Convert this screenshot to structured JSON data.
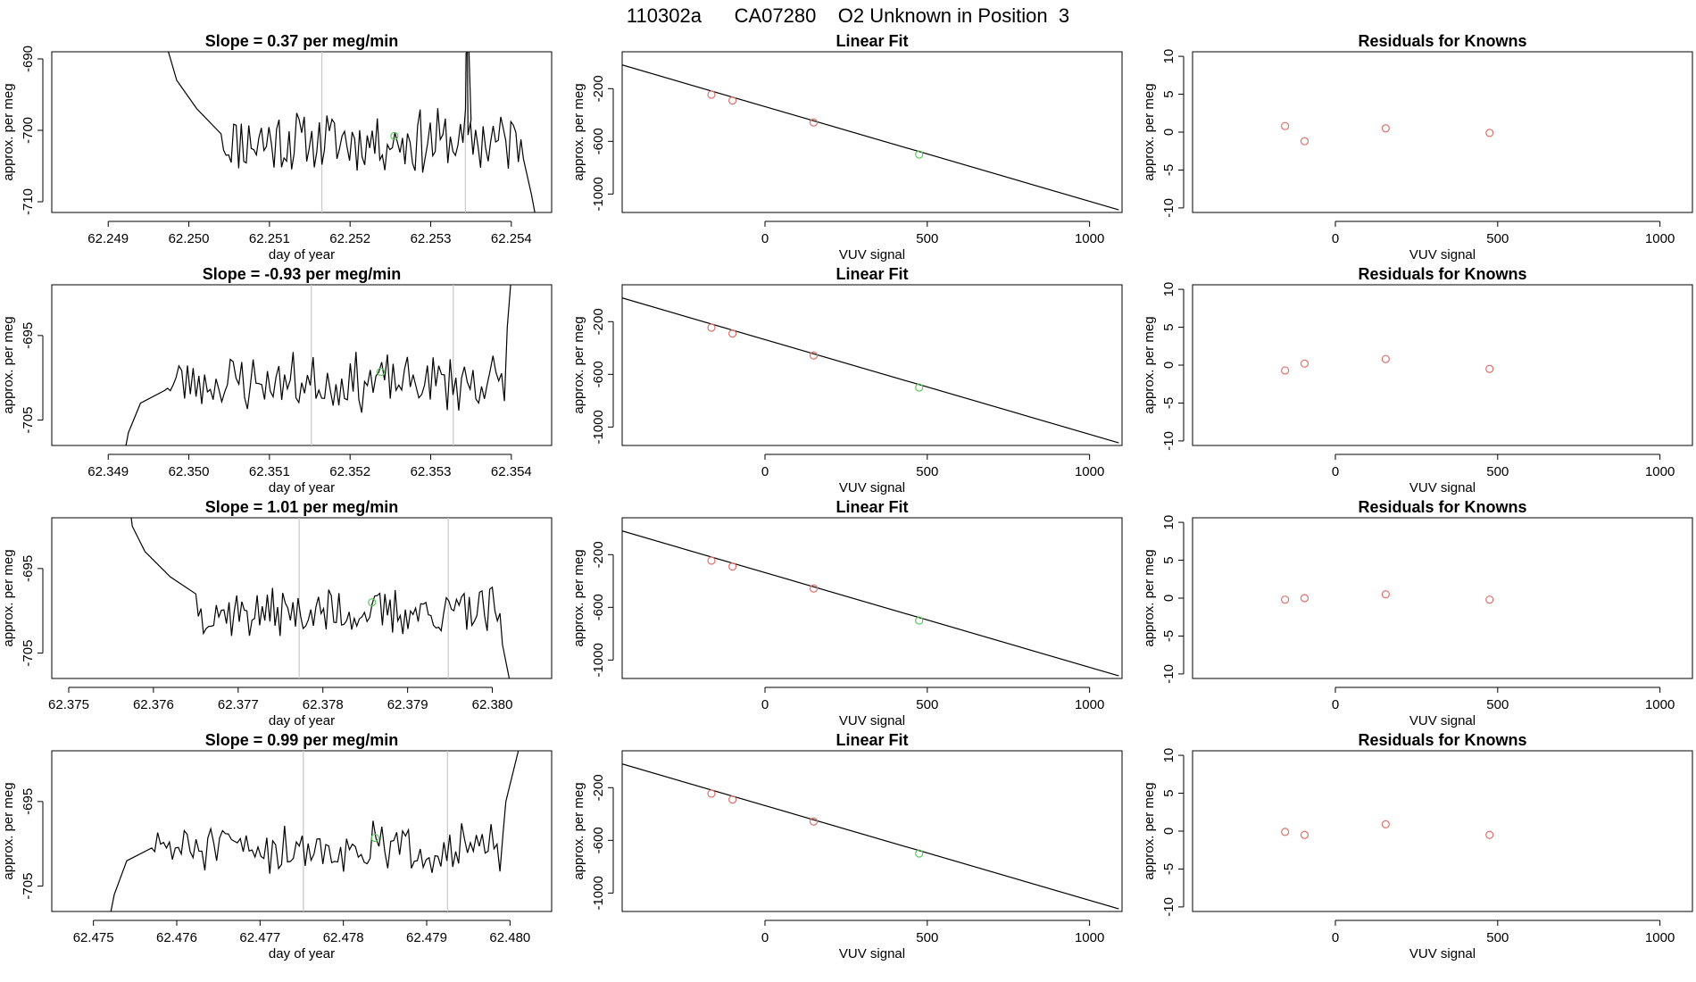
{
  "figure_title": "110302a      CA07280    O2 Unknown in Position  3",
  "colors": {
    "known_points": "#e0706a",
    "unknown_points": "#5cc95c",
    "window_lines": "#c8c8c8",
    "series": "#000000"
  },
  "chart_data": [
    {
      "type": "line",
      "row": 1,
      "kind": "timeseries",
      "title": "Slope =  0.37  per meg/min",
      "xlabel": "day of year",
      "ylabel": "approx. per meg",
      "xlim": [
        62.2483,
        62.2545
      ],
      "ylim": [
        -711.5,
        -689
      ],
      "xticks": [
        62.249,
        62.25,
        62.251,
        62.252,
        62.253,
        62.254
      ],
      "xtick_labels": [
        "62.249",
        "62.250",
        "62.251",
        "62.252",
        "62.253",
        "62.254"
      ],
      "yticks": [
        -690,
        -700,
        -710
      ],
      "ytick_labels": [
        "-690",
        "-700",
        "-710"
      ],
      "window_start": 62.25165,
      "window_end": 62.25343,
      "unknown_point": {
        "x": 62.25255,
        "y": -700.8
      },
      "series_start": 62.2497,
      "series_end": 62.2543,
      "level": -701.5,
      "spike_amp": 4,
      "seed": 11,
      "edge_profile": [
        [
          62.2497,
          -680
        ],
        [
          62.24972,
          -688
        ],
        [
          62.24985,
          -693
        ],
        [
          62.2501,
          -697
        ],
        [
          62.2504,
          -700.5
        ]
      ],
      "edge_end": [
        [
          62.25415,
          -704
        ],
        [
          62.25425,
          -709
        ],
        [
          62.2543,
          -712
        ]
      ],
      "spike": {
        "x": 62.25345,
        "y": -680
      }
    },
    {
      "type": "line",
      "row": 1,
      "kind": "fit",
      "title": "Linear Fit",
      "xlabel": "VUV signal",
      "ylabel": "approx. per meg",
      "xlim": [
        -440,
        1100
      ],
      "ylim": [
        -1140,
        80
      ],
      "xticks": [
        0,
        500,
        1000
      ],
      "xtick_labels": [
        "0",
        "500",
        "1000"
      ],
      "yticks": [
        -200,
        -600,
        -1000
      ],
      "ytick_labels": [
        "-200",
        "-600",
        "-1000"
      ],
      "line": {
        "x": [
          -440,
          1090
        ],
        "y": [
          -20,
          -1120
        ]
      },
      "known_points": {
        "x": [
          -165,
          -100,
          150
        ],
        "y": [
          -245,
          -290,
          -457
        ]
      },
      "unknown_points": {
        "x": [
          475
        ],
        "y": [
          -700
        ]
      }
    },
    {
      "type": "scatter",
      "row": 1,
      "kind": "residuals",
      "title": "Residuals for Knowns",
      "xlabel": "VUV signal",
      "ylabel": "approx. per meg",
      "xlim": [
        -440,
        1100
      ],
      "ylim": [
        -10.6,
        10.6
      ],
      "xticks": [
        0,
        500,
        1000
      ],
      "xtick_labels": [
        "0",
        "500",
        "1000"
      ],
      "yticks": [
        10,
        5,
        0,
        -5,
        -10
      ],
      "ytick_labels": [
        "10",
        "5",
        "0",
        "-5",
        "-10"
      ],
      "known_points": {
        "x": [
          -155,
          -95,
          155,
          475
        ],
        "y": [
          0.8,
          -1.2,
          0.5,
          -0.1
        ]
      }
    },
    {
      "type": "line",
      "row": 2,
      "kind": "timeseries",
      "title": "Slope =  -0.93  per meg/min",
      "xlabel": "day of year",
      "ylabel": "approx. per meg",
      "xlim": [
        62.3483,
        62.3545
      ],
      "ylim": [
        -708,
        -689
      ],
      "xticks": [
        62.349,
        62.35,
        62.351,
        62.352,
        62.353,
        62.354
      ],
      "xtick_labels": [
        "62.349",
        "62.350",
        "62.351",
        "62.352",
        "62.353",
        "62.354"
      ],
      "yticks": [
        -695,
        -705
      ],
      "ytick_labels": [
        "-695",
        "-705"
      ],
      "window_start": 62.35152,
      "window_end": 62.35328,
      "unknown_point": {
        "x": 62.35238,
        "y": -699.3
      },
      "series_start": 62.3492,
      "series_end": 62.354,
      "level": -700.5,
      "spike_amp": 3,
      "seed": 23,
      "edge_profile": [
        [
          62.3492,
          -709
        ],
        [
          62.34925,
          -706.5
        ],
        [
          62.3494,
          -703
        ],
        [
          62.3497,
          -701.5
        ]
      ],
      "edge_end": [
        [
          62.35395,
          -694
        ],
        [
          62.354,
          -688
        ]
      ],
      "spike": null
    },
    {
      "type": "line",
      "row": 2,
      "kind": "fit",
      "title": "Linear Fit",
      "xlabel": "VUV signal",
      "ylabel": "approx. per meg",
      "xlim": [
        -440,
        1100
      ],
      "ylim": [
        -1140,
        80
      ],
      "xticks": [
        0,
        500,
        1000
      ],
      "xtick_labels": [
        "0",
        "500",
        "1000"
      ],
      "yticks": [
        -200,
        -600,
        -1000
      ],
      "ytick_labels": [
        "-200",
        "-600",
        "-1000"
      ],
      "line": {
        "x": [
          -440,
          1090
        ],
        "y": [
          -20,
          -1120
        ]
      },
      "known_points": {
        "x": [
          -165,
          -100,
          150
        ],
        "y": [
          -245,
          -290,
          -457
        ]
      },
      "unknown_points": {
        "x": [
          475
        ],
        "y": [
          -700
        ]
      }
    },
    {
      "type": "scatter",
      "row": 2,
      "kind": "residuals",
      "title": "Residuals for Knowns",
      "xlabel": "VUV signal",
      "ylabel": "approx. per meg",
      "xlim": [
        -440,
        1100
      ],
      "ylim": [
        -10.6,
        10.6
      ],
      "xticks": [
        0,
        500,
        1000
      ],
      "xtick_labels": [
        "0",
        "500",
        "1000"
      ],
      "yticks": [
        10,
        5,
        0,
        -5,
        -10
      ],
      "ytick_labels": [
        "10",
        "5",
        "0",
        "-5",
        "-10"
      ],
      "known_points": {
        "x": [
          -155,
          -95,
          155,
          475
        ],
        "y": [
          -0.7,
          0.2,
          0.8,
          -0.5
        ]
      }
    },
    {
      "type": "line",
      "row": 3,
      "kind": "timeseries",
      "title": "Slope =  1.01  per meg/min",
      "xlabel": "day of year",
      "ylabel": "approx. per meg",
      "xlim": [
        62.3748,
        62.3807
      ],
      "ylim": [
        -708,
        -689
      ],
      "xticks": [
        62.375,
        62.376,
        62.377,
        62.378,
        62.379,
        62.38
      ],
      "xtick_labels": [
        "62.375",
        "62.376",
        "62.377",
        "62.378",
        "62.379",
        "62.380"
      ],
      "yticks": [
        -695,
        -705
      ],
      "ytick_labels": [
        "-695",
        "-705"
      ],
      "window_start": 62.37772,
      "window_end": 62.37948,
      "unknown_point": {
        "x": 62.37858,
        "y": -699
      },
      "series_start": 62.3757,
      "series_end": 62.3802,
      "level": -700.2,
      "spike_amp": 2.5,
      "seed": 37,
      "edge_profile": [
        [
          62.3757,
          -686
        ],
        [
          62.37575,
          -690
        ],
        [
          62.3759,
          -693
        ],
        [
          62.3762,
          -696
        ],
        [
          62.3765,
          -698
        ]
      ],
      "edge_end": [
        [
          62.38012,
          -704
        ],
        [
          62.3802,
          -708
        ]
      ],
      "spike": null
    },
    {
      "type": "line",
      "row": 3,
      "kind": "fit",
      "title": "Linear Fit",
      "xlabel": "VUV signal",
      "ylabel": "approx. per meg",
      "xlim": [
        -440,
        1100
      ],
      "ylim": [
        -1140,
        80
      ],
      "xticks": [
        0,
        500,
        1000
      ],
      "xtick_labels": [
        "0",
        "500",
        "1000"
      ],
      "yticks": [
        -200,
        -600,
        -1000
      ],
      "ytick_labels": [
        "-200",
        "-600",
        "-1000"
      ],
      "line": {
        "x": [
          -440,
          1090
        ],
        "y": [
          -20,
          -1120
        ]
      },
      "known_points": {
        "x": [
          -165,
          -100,
          150
        ],
        "y": [
          -245,
          -290,
          -457
        ]
      },
      "unknown_points": {
        "x": [
          475
        ],
        "y": [
          -700
        ]
      }
    },
    {
      "type": "scatter",
      "row": 3,
      "kind": "residuals",
      "title": "Residuals for Knowns",
      "xlabel": "VUV signal",
      "ylabel": "approx. per meg",
      "xlim": [
        -440,
        1100
      ],
      "ylim": [
        -10.6,
        10.6
      ],
      "xticks": [
        0,
        500,
        1000
      ],
      "xtick_labels": [
        "0",
        "500",
        "1000"
      ],
      "yticks": [
        10,
        5,
        0,
        -5,
        -10
      ],
      "ytick_labels": [
        "10",
        "5",
        "0",
        "-5",
        "-10"
      ],
      "known_points": {
        "x": [
          -155,
          -95,
          155,
          475
        ],
        "y": [
          -0.2,
          0.0,
          0.5,
          -0.2
        ]
      }
    },
    {
      "type": "line",
      "row": 4,
      "kind": "timeseries",
      "title": "Slope =  0.99  per meg/min",
      "xlabel": "day of year",
      "ylabel": "approx. per meg",
      "xlim": [
        62.4745,
        62.4805
      ],
      "ylim": [
        -708,
        -689
      ],
      "xticks": [
        62.475,
        62.476,
        62.477,
        62.478,
        62.479,
        62.48
      ],
      "xtick_labels": [
        "62.475",
        "62.476",
        "62.477",
        "62.478",
        "62.479",
        "62.480"
      ],
      "yticks": [
        -695,
        -705
      ],
      "ytick_labels": [
        "-695",
        "-705"
      ],
      "window_start": 62.47752,
      "window_end": 62.47925,
      "unknown_point": {
        "x": 62.47838,
        "y": -699.3
      },
      "series_start": 62.4752,
      "series_end": 62.4801,
      "level": -700.5,
      "spike_amp": 2.5,
      "seed": 51,
      "edge_profile": [
        [
          62.4752,
          -708.5
        ],
        [
          62.47525,
          -706
        ],
        [
          62.4754,
          -702
        ],
        [
          62.4757,
          -700.5
        ]
      ],
      "edge_end": [
        [
          62.47995,
          -695
        ],
        [
          62.4801,
          -689
        ]
      ],
      "spike": null
    },
    {
      "type": "line",
      "row": 4,
      "kind": "fit",
      "title": "Linear Fit",
      "xlabel": "VUV signal",
      "ylabel": "approx. per meg",
      "xlim": [
        -440,
        1100
      ],
      "ylim": [
        -1140,
        80
      ],
      "xticks": [
        0,
        500,
        1000
      ],
      "xtick_labels": [
        "0",
        "500",
        "1000"
      ],
      "yticks": [
        -200,
        -600,
        -1000
      ],
      "ytick_labels": [
        "-200",
        "-600",
        "-1000"
      ],
      "line": {
        "x": [
          -440,
          1090
        ],
        "y": [
          -20,
          -1120
        ]
      },
      "known_points": {
        "x": [
          -165,
          -100,
          150
        ],
        "y": [
          -245,
          -290,
          -457
        ]
      },
      "unknown_points": {
        "x": [
          475
        ],
        "y": [
          -700
        ]
      }
    },
    {
      "type": "scatter",
      "row": 4,
      "kind": "residuals",
      "title": "Residuals for Knowns",
      "xlabel": "VUV signal",
      "ylabel": "approx. per meg",
      "xlim": [
        -440,
        1100
      ],
      "ylim": [
        -10.6,
        10.6
      ],
      "xticks": [
        0,
        500,
        1000
      ],
      "xtick_labels": [
        "0",
        "500",
        "1000"
      ],
      "yticks": [
        10,
        5,
        0,
        -5,
        -10
      ],
      "ytick_labels": [
        "10",
        "5",
        "0",
        "-5",
        "-10"
      ],
      "known_points": {
        "x": [
          -155,
          -95,
          155,
          475
        ],
        "y": [
          -0.1,
          -0.5,
          0.9,
          -0.5
        ]
      }
    }
  ]
}
